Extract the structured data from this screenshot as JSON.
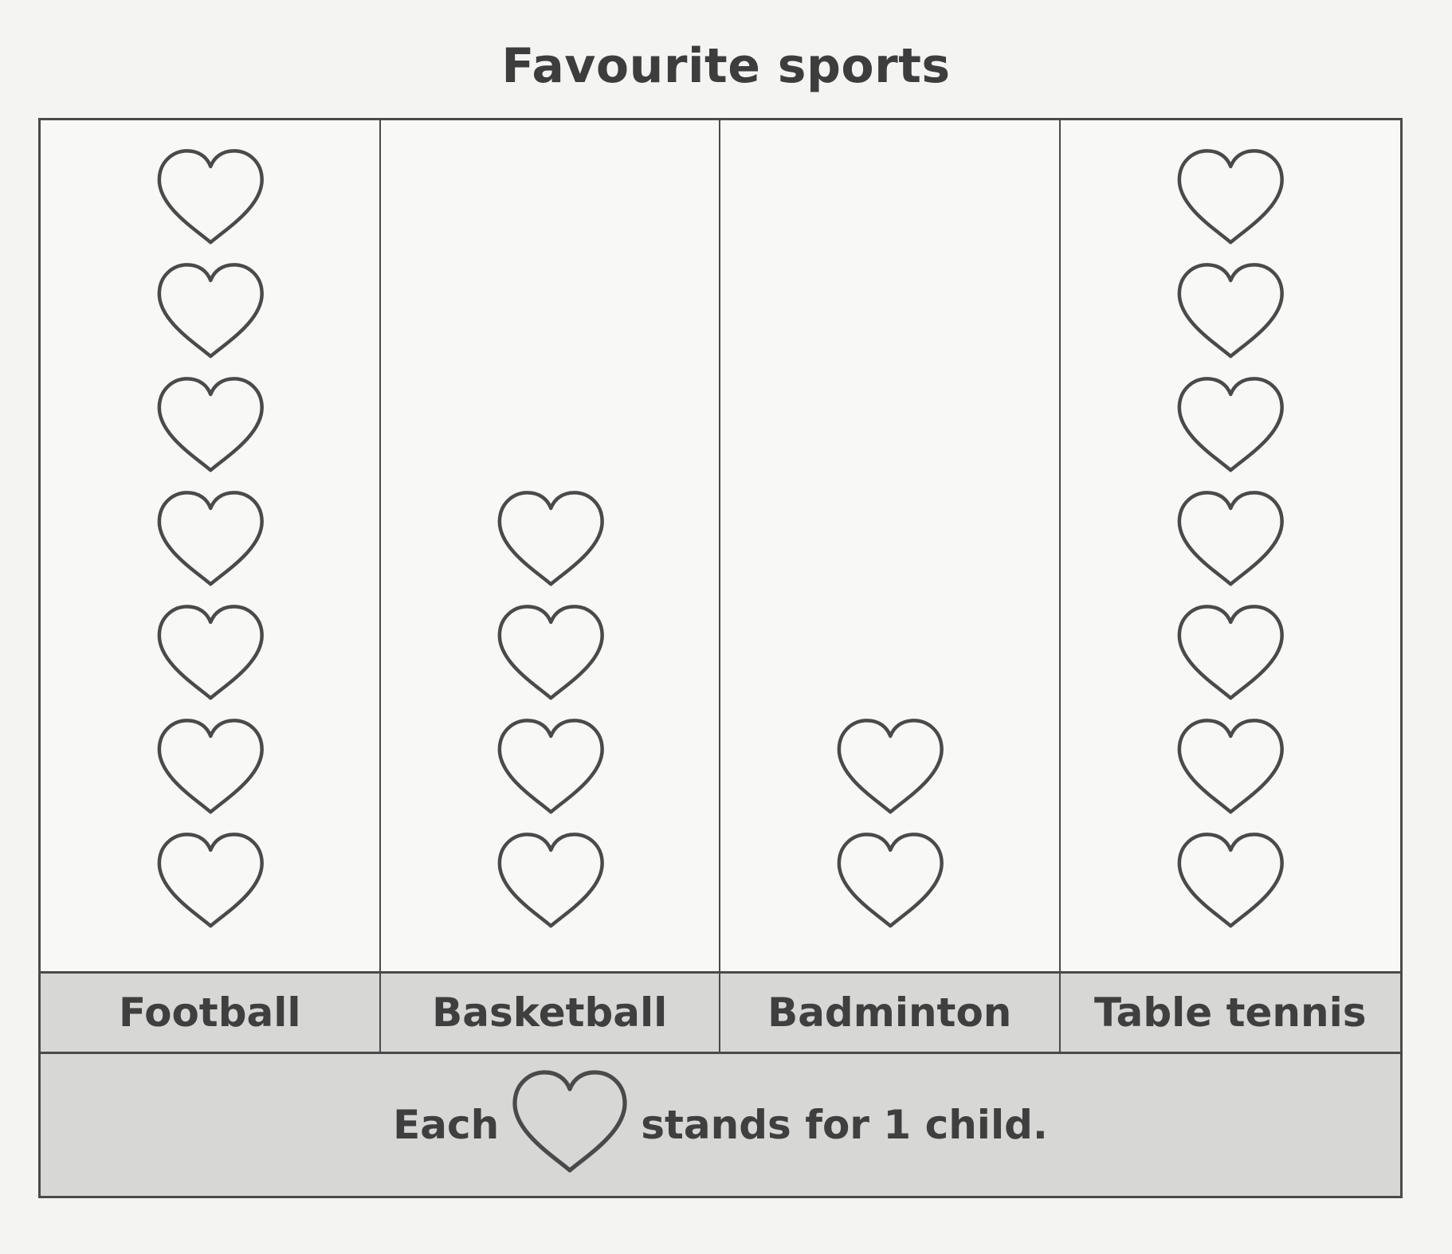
{
  "title": "Favourite sports",
  "chart_data": {
    "type": "pictogram",
    "title": "Favourite sports",
    "categories": [
      "Football",
      "Basketball",
      "Badminton",
      "Table tennis"
    ],
    "values": [
      7,
      4,
      2,
      7
    ],
    "icon": "heart-icon",
    "key": {
      "before": "Each",
      "after": "stands for 1 child.",
      "units_per_icon": 1
    }
  },
  "colors": {
    "outline": "#4a4a4a",
    "label_band": "#d7d8d6",
    "background": "#f8f9f7"
  }
}
